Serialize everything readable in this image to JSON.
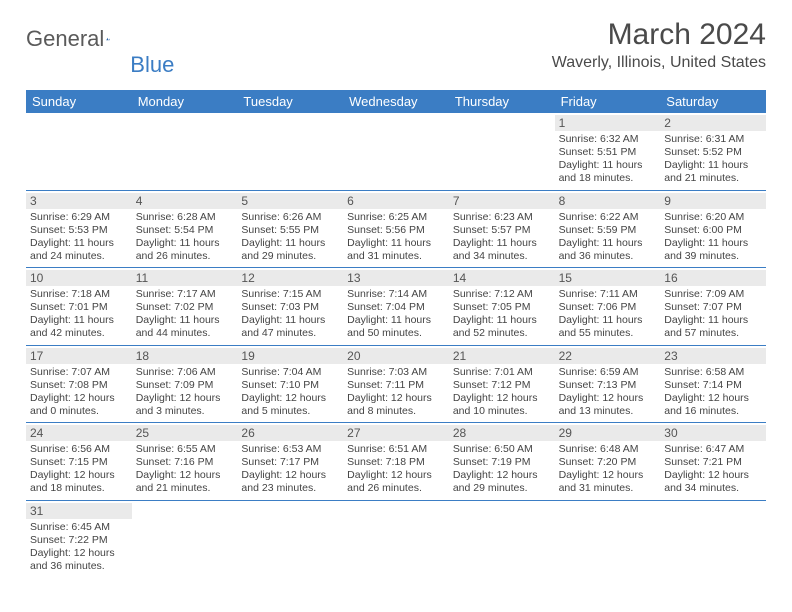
{
  "logo": {
    "general": "General",
    "blue": "Blue"
  },
  "title": "March 2024",
  "location": "Waverly, Illinois, United States",
  "day_headers": [
    "Sunday",
    "Monday",
    "Tuesday",
    "Wednesday",
    "Thursday",
    "Friday",
    "Saturday"
  ],
  "colors": {
    "header_bg": "#3b7dc4",
    "header_text": "#ffffff",
    "daynum_bg": "#eaeaea",
    "text": "#444444",
    "border": "#3b7dc4"
  },
  "weeks": [
    [
      null,
      null,
      null,
      null,
      null,
      {
        "n": "1",
        "sunrise": "Sunrise: 6:32 AM",
        "sunset": "Sunset: 5:51 PM",
        "daylight": "Daylight: 11 hours and 18 minutes."
      },
      {
        "n": "2",
        "sunrise": "Sunrise: 6:31 AM",
        "sunset": "Sunset: 5:52 PM",
        "daylight": "Daylight: 11 hours and 21 minutes."
      }
    ],
    [
      {
        "n": "3",
        "sunrise": "Sunrise: 6:29 AM",
        "sunset": "Sunset: 5:53 PM",
        "daylight": "Daylight: 11 hours and 24 minutes."
      },
      {
        "n": "4",
        "sunrise": "Sunrise: 6:28 AM",
        "sunset": "Sunset: 5:54 PM",
        "daylight": "Daylight: 11 hours and 26 minutes."
      },
      {
        "n": "5",
        "sunrise": "Sunrise: 6:26 AM",
        "sunset": "Sunset: 5:55 PM",
        "daylight": "Daylight: 11 hours and 29 minutes."
      },
      {
        "n": "6",
        "sunrise": "Sunrise: 6:25 AM",
        "sunset": "Sunset: 5:56 PM",
        "daylight": "Daylight: 11 hours and 31 minutes."
      },
      {
        "n": "7",
        "sunrise": "Sunrise: 6:23 AM",
        "sunset": "Sunset: 5:57 PM",
        "daylight": "Daylight: 11 hours and 34 minutes."
      },
      {
        "n": "8",
        "sunrise": "Sunrise: 6:22 AM",
        "sunset": "Sunset: 5:59 PM",
        "daylight": "Daylight: 11 hours and 36 minutes."
      },
      {
        "n": "9",
        "sunrise": "Sunrise: 6:20 AM",
        "sunset": "Sunset: 6:00 PM",
        "daylight": "Daylight: 11 hours and 39 minutes."
      }
    ],
    [
      {
        "n": "10",
        "sunrise": "Sunrise: 7:18 AM",
        "sunset": "Sunset: 7:01 PM",
        "daylight": "Daylight: 11 hours and 42 minutes."
      },
      {
        "n": "11",
        "sunrise": "Sunrise: 7:17 AM",
        "sunset": "Sunset: 7:02 PM",
        "daylight": "Daylight: 11 hours and 44 minutes."
      },
      {
        "n": "12",
        "sunrise": "Sunrise: 7:15 AM",
        "sunset": "Sunset: 7:03 PM",
        "daylight": "Daylight: 11 hours and 47 minutes."
      },
      {
        "n": "13",
        "sunrise": "Sunrise: 7:14 AM",
        "sunset": "Sunset: 7:04 PM",
        "daylight": "Daylight: 11 hours and 50 minutes."
      },
      {
        "n": "14",
        "sunrise": "Sunrise: 7:12 AM",
        "sunset": "Sunset: 7:05 PM",
        "daylight": "Daylight: 11 hours and 52 minutes."
      },
      {
        "n": "15",
        "sunrise": "Sunrise: 7:11 AM",
        "sunset": "Sunset: 7:06 PM",
        "daylight": "Daylight: 11 hours and 55 minutes."
      },
      {
        "n": "16",
        "sunrise": "Sunrise: 7:09 AM",
        "sunset": "Sunset: 7:07 PM",
        "daylight": "Daylight: 11 hours and 57 minutes."
      }
    ],
    [
      {
        "n": "17",
        "sunrise": "Sunrise: 7:07 AM",
        "sunset": "Sunset: 7:08 PM",
        "daylight": "Daylight: 12 hours and 0 minutes."
      },
      {
        "n": "18",
        "sunrise": "Sunrise: 7:06 AM",
        "sunset": "Sunset: 7:09 PM",
        "daylight": "Daylight: 12 hours and 3 minutes."
      },
      {
        "n": "19",
        "sunrise": "Sunrise: 7:04 AM",
        "sunset": "Sunset: 7:10 PM",
        "daylight": "Daylight: 12 hours and 5 minutes."
      },
      {
        "n": "20",
        "sunrise": "Sunrise: 7:03 AM",
        "sunset": "Sunset: 7:11 PM",
        "daylight": "Daylight: 12 hours and 8 minutes."
      },
      {
        "n": "21",
        "sunrise": "Sunrise: 7:01 AM",
        "sunset": "Sunset: 7:12 PM",
        "daylight": "Daylight: 12 hours and 10 minutes."
      },
      {
        "n": "22",
        "sunrise": "Sunrise: 6:59 AM",
        "sunset": "Sunset: 7:13 PM",
        "daylight": "Daylight: 12 hours and 13 minutes."
      },
      {
        "n": "23",
        "sunrise": "Sunrise: 6:58 AM",
        "sunset": "Sunset: 7:14 PM",
        "daylight": "Daylight: 12 hours and 16 minutes."
      }
    ],
    [
      {
        "n": "24",
        "sunrise": "Sunrise: 6:56 AM",
        "sunset": "Sunset: 7:15 PM",
        "daylight": "Daylight: 12 hours and 18 minutes."
      },
      {
        "n": "25",
        "sunrise": "Sunrise: 6:55 AM",
        "sunset": "Sunset: 7:16 PM",
        "daylight": "Daylight: 12 hours and 21 minutes."
      },
      {
        "n": "26",
        "sunrise": "Sunrise: 6:53 AM",
        "sunset": "Sunset: 7:17 PM",
        "daylight": "Daylight: 12 hours and 23 minutes."
      },
      {
        "n": "27",
        "sunrise": "Sunrise: 6:51 AM",
        "sunset": "Sunset: 7:18 PM",
        "daylight": "Daylight: 12 hours and 26 minutes."
      },
      {
        "n": "28",
        "sunrise": "Sunrise: 6:50 AM",
        "sunset": "Sunset: 7:19 PM",
        "daylight": "Daylight: 12 hours and 29 minutes."
      },
      {
        "n": "29",
        "sunrise": "Sunrise: 6:48 AM",
        "sunset": "Sunset: 7:20 PM",
        "daylight": "Daylight: 12 hours and 31 minutes."
      },
      {
        "n": "30",
        "sunrise": "Sunrise: 6:47 AM",
        "sunset": "Sunset: 7:21 PM",
        "daylight": "Daylight: 12 hours and 34 minutes."
      }
    ],
    [
      {
        "n": "31",
        "sunrise": "Sunrise: 6:45 AM",
        "sunset": "Sunset: 7:22 PM",
        "daylight": "Daylight: 12 hours and 36 minutes."
      },
      null,
      null,
      null,
      null,
      null,
      null
    ]
  ]
}
